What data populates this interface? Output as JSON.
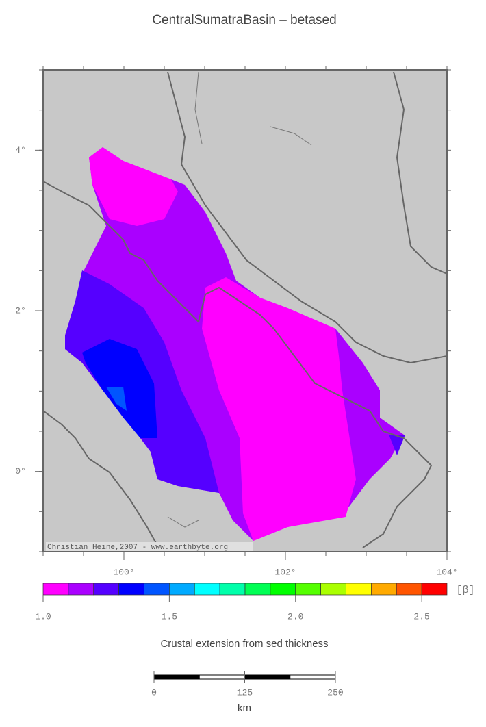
{
  "title": "CentralSumatraBasin – betased",
  "map": {
    "lonlim": [
      99,
      104
    ],
    "latlim": [
      -1,
      5
    ],
    "lon_ticks": [
      {
        "value": 100,
        "label": "100°"
      },
      {
        "value": 102,
        "label": "102°"
      },
      {
        "value": 104,
        "label": "104°"
      }
    ],
    "lat_ticks": [
      {
        "value": 4,
        "label": "4°"
      },
      {
        "value": 2,
        "label": "2°"
      },
      {
        "value": 0,
        "label": "0°"
      }
    ],
    "credit": "Christian Heine,2007 - www.earthbyte.org"
  },
  "colorbar": {
    "range": [
      1.0,
      2.6
    ],
    "colors": [
      "#ff00ff",
      "#aa00ff",
      "#5500ff",
      "#0000ff",
      "#0055ff",
      "#00aaff",
      "#00ffff",
      "#00ffaa",
      "#00ff55",
      "#00ff00",
      "#55ff00",
      "#aaff00",
      "#ffff00",
      "#ffaa00",
      "#ff5500",
      "#ff0000"
    ],
    "ticks": [
      {
        "value": 1.0,
        "label": "1.0"
      },
      {
        "value": 1.5,
        "label": "1.5"
      },
      {
        "value": 2.0,
        "label": "2.0"
      },
      {
        "value": 2.5,
        "label": "2.5"
      }
    ],
    "unit": "[β]",
    "caption": "Crustal extension from sed thickness"
  },
  "scalebar": {
    "ticks": [
      0,
      125,
      250
    ],
    "unit": "km"
  }
}
